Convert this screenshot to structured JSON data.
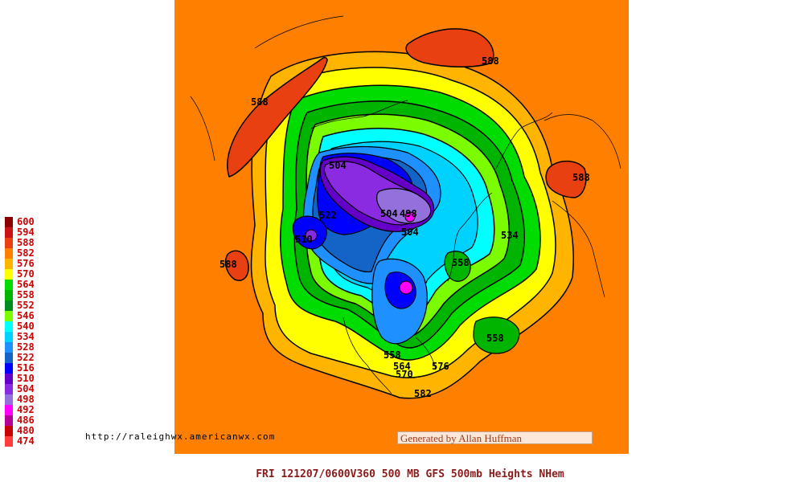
{
  "legend": {
    "levels": [
      {
        "value": "600",
        "color": "#8b0000"
      },
      {
        "value": "594",
        "color": "#c81414"
      },
      {
        "value": "588",
        "color": "#e84010"
      },
      {
        "value": "582",
        "color": "#ff8000"
      },
      {
        "value": "576",
        "color": "#ffb400"
      },
      {
        "value": "570",
        "color": "#ffff00"
      },
      {
        "value": "564",
        "color": "#00dc00"
      },
      {
        "value": "558",
        "color": "#00b400"
      },
      {
        "value": "552",
        "color": "#008c1e"
      },
      {
        "value": "546",
        "color": "#7cfc00"
      },
      {
        "value": "540",
        "color": "#00ffff"
      },
      {
        "value": "534",
        "color": "#00d2ff"
      },
      {
        "value": "528",
        "color": "#1e90ff"
      },
      {
        "value": "522",
        "color": "#1464c8"
      },
      {
        "value": "516",
        "color": "#0000ff"
      },
      {
        "value": "510",
        "color": "#6400c8"
      },
      {
        "value": "504",
        "color": "#8a2be2"
      },
      {
        "value": "498",
        "color": "#9370db"
      },
      {
        "value": "492",
        "color": "#ff00ff"
      },
      {
        "value": "486",
        "color": "#b40096"
      },
      {
        "value": "480",
        "color": "#c80000"
      },
      {
        "value": "474",
        "color": "#ff3c3c"
      }
    ]
  },
  "map": {
    "contour_labels": [
      "588",
      "588",
      "588",
      "588",
      "504",
      "522",
      "510",
      "504",
      "498",
      "504",
      "534",
      "558",
      "564",
      "570",
      "576",
      "582",
      "558",
      "558"
    ]
  },
  "footer": {
    "url": "http://raleighwx.americanwx.com",
    "credit": "Generated by Allan Huffman",
    "caption": "FRI 121207/0600V360  500 MB GFS 500mb Heights NHem"
  }
}
